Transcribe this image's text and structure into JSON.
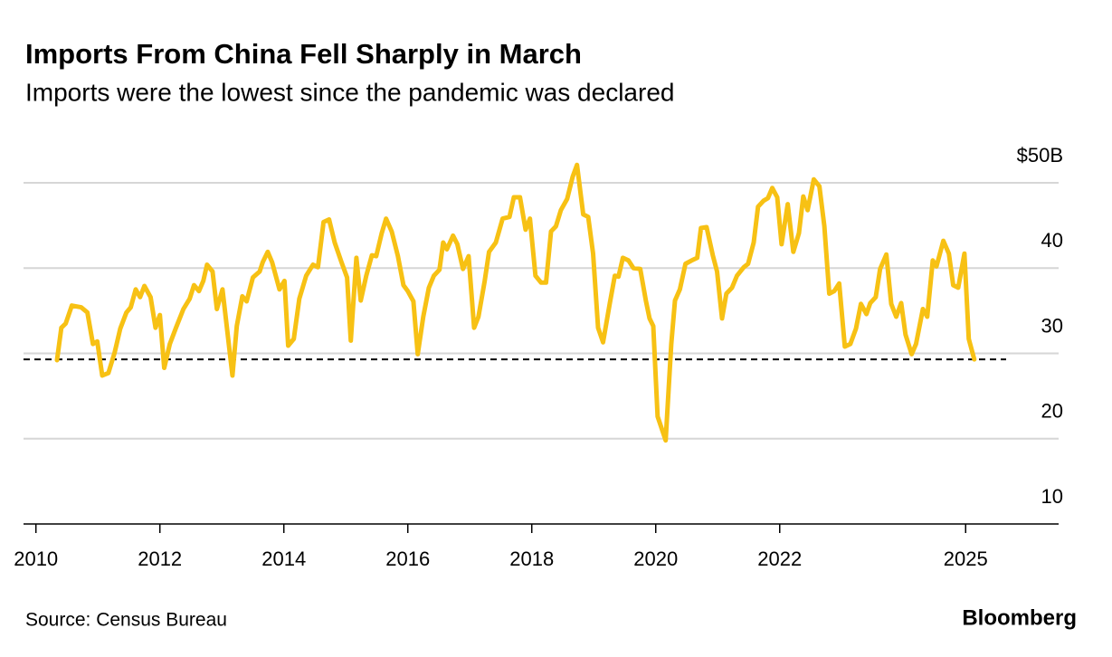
{
  "chart_data": {
    "type": "line",
    "title": "Imports From China Fell Sharply in March",
    "subtitle": "Imports were the lowest since the pandemic was declared",
    "source": "Source: Census Bureau",
    "brand": "Bloomberg",
    "color": "#f7c114",
    "reference_line": 29.3,
    "xlim": [
      2009.8,
      2026.5
    ],
    "xticks": [
      2010,
      2012,
      2014,
      2016,
      2018,
      2020,
      2022,
      2025
    ],
    "ylim": [
      10,
      50
    ],
    "yticks": [
      10,
      20,
      30,
      40,
      {
        "value": 50,
        "label": "$50B"
      }
    ],
    "grid": true,
    "x": [
      2010.34,
      2010.41,
      2010.48,
      2010.58,
      2010.73,
      2010.83,
      2010.92,
      2010.99,
      2011.07,
      2011.17,
      2011.27,
      2011.36,
      2011.46,
      2011.53,
      2011.61,
      2011.68,
      2011.75,
      2011.85,
      2011.93,
      2012.0,
      2012.07,
      2012.16,
      2012.26,
      2012.38,
      2012.48,
      2012.55,
      2012.63,
      2012.7,
      2012.76,
      2012.85,
      2012.92,
      2013.01,
      2013.17,
      2013.24,
      2013.33,
      2013.4,
      2013.5,
      2013.61,
      2013.66,
      2013.74,
      2013.81,
      2013.93,
      2014.01,
      2014.07,
      2014.16,
      2014.25,
      2014.36,
      2014.47,
      2014.55,
      2014.64,
      2014.73,
      2014.82,
      2014.93,
      2015.02,
      2015.08,
      2015.17,
      2015.24,
      2015.33,
      2015.42,
      2015.49,
      2015.58,
      2015.65,
      2015.74,
      2015.84,
      2015.93,
      2016.0,
      2016.09,
      2016.16,
      2016.25,
      2016.34,
      2016.42,
      2016.51,
      2016.57,
      2016.63,
      2016.73,
      2016.8,
      2016.89,
      2016.98,
      2017.07,
      2017.14,
      2017.24,
      2017.31,
      2017.42,
      2017.53,
      2017.64,
      2017.71,
      2017.81,
      2017.9,
      2017.97,
      2018.06,
      2018.15,
      2018.23,
      2018.31,
      2018.39,
      2018.47,
      2018.57,
      2018.66,
      2018.73,
      2018.83,
      2018.91,
      2018.99,
      2019.07,
      2019.15,
      2019.26,
      2019.34,
      2019.4,
      2019.47,
      2019.56,
      2019.64,
      2019.75,
      2019.84,
      2019.9,
      2019.96,
      2020.03,
      2020.16,
      2020.25,
      2020.31,
      2020.39,
      2020.48,
      2020.58,
      2020.67,
      2020.73,
      2020.82,
      2020.92,
      2020.99,
      2021.07,
      2021.14,
      2021.23,
      2021.31,
      2021.42,
      2021.49,
      2021.58,
      2021.65,
      2021.74,
      2021.81,
      2021.88,
      2021.96,
      2022.03,
      2022.13,
      2022.22,
      2022.31,
      2022.38,
      2022.45,
      2022.55,
      2022.64,
      2022.72,
      2022.8,
      2022.88,
      2022.96,
      2023.05,
      2023.14,
      2023.23,
      2023.31,
      2023.4,
      2023.46,
      2023.55,
      2023.62,
      2023.72,
      2023.8,
      2023.88,
      2023.96,
      2024.03,
      2024.13,
      2024.2,
      2024.31,
      2024.38,
      2024.47,
      2024.53,
      2024.64,
      2024.73,
      2024.8,
      2024.88,
      2024.98,
      2025.05,
      2025.14
    ],
    "values": [
      29.2,
      33.0,
      33.5,
      35.6,
      35.4,
      34.8,
      31.1,
      31.4,
      27.4,
      27.7,
      30.1,
      32.9,
      34.8,
      35.4,
      37.5,
      36.6,
      37.9,
      36.6,
      33.0,
      34.5,
      28.3,
      31.1,
      33.0,
      35.2,
      36.4,
      38.0,
      37.3,
      38.5,
      40.4,
      39.6,
      35.2,
      37.5,
      27.4,
      33.2,
      36.7,
      36.1,
      38.9,
      39.6,
      40.7,
      41.9,
      40.7,
      37.5,
      38.5,
      30.9,
      31.7,
      36.4,
      39.1,
      40.4,
      40.1,
      45.4,
      45.7,
      43.0,
      40.7,
      38.9,
      31.5,
      41.2,
      36.2,
      39.1,
      41.5,
      41.4,
      44.1,
      45.8,
      44.3,
      41.4,
      38.0,
      37.3,
      36.1,
      29.9,
      34.3,
      37.7,
      39.1,
      39.8,
      43.0,
      42.2,
      43.8,
      42.8,
      39.9,
      41.4,
      33.0,
      34.3,
      38.5,
      41.9,
      43.0,
      45.8,
      46.0,
      48.3,
      48.3,
      44.5,
      45.8,
      39.1,
      38.3,
      38.3,
      44.3,
      44.9,
      46.8,
      48.1,
      50.7,
      52.1,
      46.3,
      46.0,
      41.7,
      33.0,
      31.3,
      35.9,
      39.1,
      39.0,
      41.2,
      40.9,
      40.0,
      39.9,
      36.2,
      34.1,
      33.2,
      22.6,
      19.8,
      31.1,
      36.2,
      37.5,
      40.5,
      40.9,
      41.2,
      44.7,
      44.8,
      41.5,
      39.6,
      34.1,
      37.0,
      37.7,
      39.1,
      40.1,
      40.5,
      43.0,
      47.2,
      47.9,
      48.2,
      49.4,
      48.3,
      42.8,
      47.5,
      41.9,
      44.1,
      48.4,
      46.8,
      50.4,
      49.6,
      44.9,
      37.0,
      37.3,
      38.2,
      30.8,
      31.1,
      32.9,
      35.8,
      34.6,
      35.9,
      36.6,
      39.9,
      41.6,
      35.8,
      34.3,
      35.9,
      32.2,
      29.9,
      31.1,
      35.2,
      34.3,
      40.9,
      40.2,
      43.2,
      41.7,
      38.0,
      37.7,
      41.7,
      31.7,
      29.3
    ]
  }
}
